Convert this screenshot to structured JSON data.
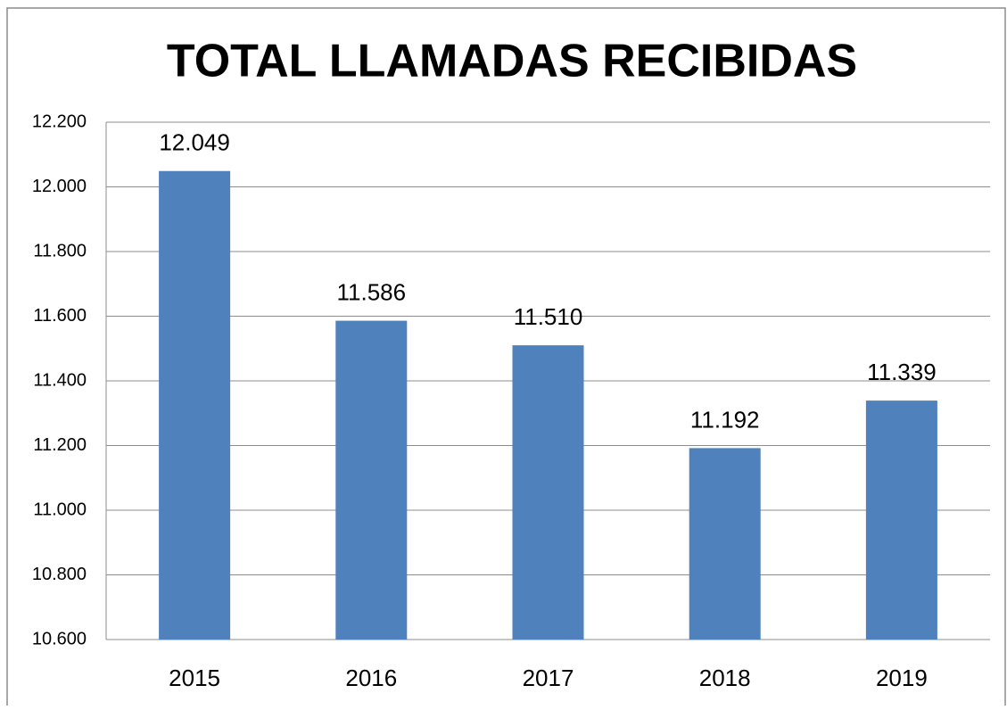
{
  "chart_data": {
    "type": "bar",
    "title": "TOTAL LLAMADAS RECIBIDAS",
    "categories": [
      "2015",
      "2016",
      "2017",
      "2018",
      "2019"
    ],
    "values": [
      12049,
      11586,
      11510,
      11192,
      11339
    ],
    "value_labels": [
      "12.049",
      "11.586",
      "11.510",
      "11.192",
      "11.339"
    ],
    "color": "#4f81bd",
    "ylim": [
      10600,
      12200
    ],
    "yticks": [
      {
        "value": 10600,
        "label": "10.600"
      },
      {
        "value": 10800,
        "label": "10.800"
      },
      {
        "value": 11000,
        "label": "11.000"
      },
      {
        "value": 11200,
        "label": "11.200"
      },
      {
        "value": 11400,
        "label": "11.400"
      },
      {
        "value": 11600,
        "label": "11.600"
      },
      {
        "value": 11800,
        "label": "11.800"
      },
      {
        "value": 12000,
        "label": "12.000"
      },
      {
        "value": 12200,
        "label": "12.200"
      }
    ],
    "grid": true
  }
}
